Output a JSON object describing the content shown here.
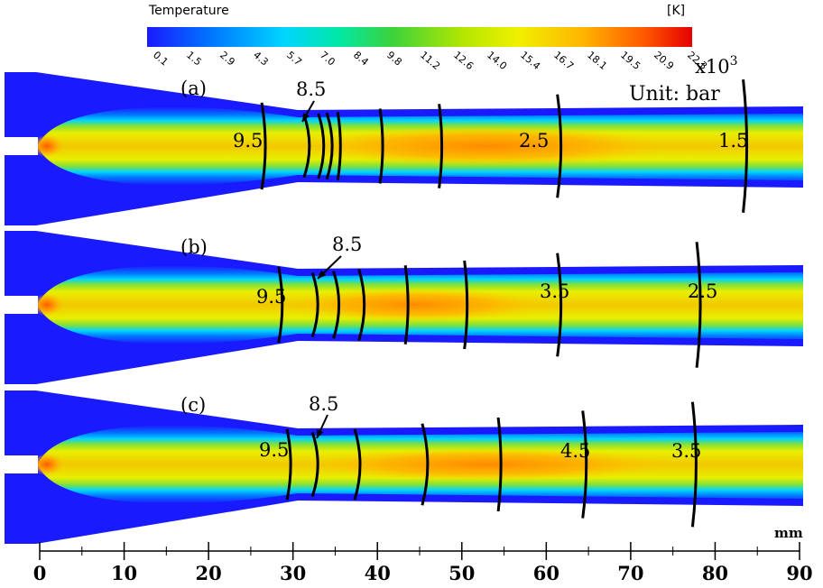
{
  "colorbar": {
    "title": "Temperature",
    "unit": "[K]",
    "ticks": [
      "0.1",
      "1.5",
      "2.9",
      "4.3",
      "5.7",
      "7.0",
      "8.4",
      "9.8",
      "11.2",
      "12.6",
      "14.0",
      "15.4",
      "16.7",
      "18.1",
      "19.5",
      "20.9",
      "22.3"
    ],
    "multiplier": "x10",
    "multiplier_exp": "3",
    "colors": [
      "#1a1aff",
      "#0078ff",
      "#00d4ff",
      "#00e8a8",
      "#3cd23c",
      "#b4e600",
      "#f0f000",
      "#ffb400",
      "#ff5a00",
      "#e60000"
    ]
  },
  "unit_label": "Unit: bar",
  "panels": [
    {
      "label": "(a)",
      "arrow_label": "8.5",
      "contour_labels": [
        "9.5",
        "2.5",
        "1.5"
      ]
    },
    {
      "label": "(b)",
      "arrow_label": "8.5",
      "contour_labels": [
        "9.5",
        "3.5",
        "2.5"
      ]
    },
    {
      "label": "(c)",
      "arrow_label": "8.5",
      "contour_labels": [
        "9.5",
        "4.5",
        "3.5"
      ]
    }
  ],
  "axis": {
    "unit": "mm",
    "ticks": [
      "0",
      "10",
      "20",
      "30",
      "40",
      "50",
      "60",
      "70",
      "80",
      "90"
    ]
  }
}
